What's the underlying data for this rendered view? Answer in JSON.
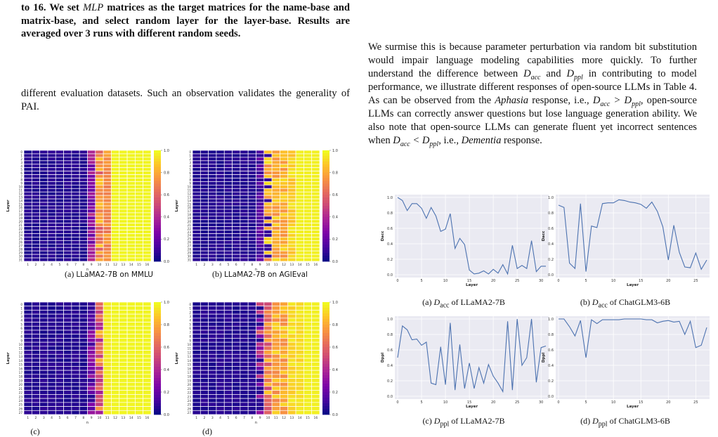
{
  "top_caption": {
    "line1": "to 16. We set",
    "mlp": "MLP",
    "line1b": " matrices as the target matrices for the name-base and matrix-base, and select random layer for the layer-base. Results are averaged over 3 runs with different random seeds."
  },
  "left_text": "different evaluation datasets. Such an observation validates the generality of PAI.",
  "right_text": {
    "p1": "We surmise this is because parameter perturbation via random bit substitution would impair language modeling capabilities more quickly. To further understand the difference between ",
    "dacc": "D",
    "acc": "acc",
    "and": " and ",
    "dppl": "D",
    "ppl": "ppl",
    "p2": " in contributing to model performance, we illustrate different responses of open-source LLMs in Table 4. As can be observed from the ",
    "aphasia": "Aphasia",
    "p3": " response, i.e., ",
    "p4": ", open-source LLMs can correctly answer questions but lose language generation ability. We also note that open-source LLMs can generate fluent yet incorrect sentences when ",
    "p5": ", i.e., ",
    "dementia": "Dementia",
    "p6": " response."
  },
  "heatmaps": [
    {
      "caption_label": "(a)",
      "caption_text": "LLaMA2-7B on MMLU",
      "xlabel": "n",
      "ylabel": "Layer",
      "layers": 32
    },
    {
      "caption_label": "(b)",
      "caption_text": "LLaMA2-7B on AGIEval",
      "xlabel": "n",
      "ylabel": "Layer",
      "layers": 32
    },
    {
      "caption_label": "(c)",
      "caption_text": "",
      "xlabel": "n",
      "ylabel": "Layer",
      "layers": 28
    },
    {
      "caption_label": "(d)",
      "caption_text": "",
      "xlabel": "n",
      "ylabel": "Layer",
      "layers": 28
    }
  ],
  "colorbar_ticks": [
    "1.0",
    "0.8",
    "0.6",
    "0.4",
    "0.2",
    "0.0"
  ],
  "n_ticks": [
    "1",
    "2",
    "3",
    "4",
    "5",
    "6",
    "7",
    "8",
    "9",
    "10",
    "11",
    "12",
    "13",
    "14",
    "15",
    "16"
  ],
  "line_captions": [
    {
      "label": "(a)",
      "metric": "acc",
      "model": "of LLaMA2-7B"
    },
    {
      "label": "(b)",
      "metric": "acc",
      "model": "of ChatGLM3-6B"
    },
    {
      "label": "(c)",
      "metric": "ppl",
      "model": "of LLaMA2-7B"
    },
    {
      "label": "(d)",
      "metric": "ppl",
      "model": "of ChatGLM3-6B"
    }
  ],
  "chart_data": [
    {
      "type": "line",
      "title": "",
      "xlabel": "Layer",
      "ylabel": "Dacc",
      "x": [
        0,
        1,
        2,
        3,
        4,
        5,
        6,
        7,
        8,
        9,
        10,
        11,
        12,
        13,
        14,
        15,
        16,
        17,
        18,
        19,
        20,
        21,
        22,
        23,
        24,
        25,
        26,
        27,
        28,
        29,
        30,
        31
      ],
      "values": [
        1.0,
        0.96,
        0.83,
        0.92,
        0.92,
        0.86,
        0.73,
        0.87,
        0.76,
        0.56,
        0.59,
        0.79,
        0.34,
        0.47,
        0.39,
        0.06,
        0.01,
        0.02,
        0.05,
        0.01,
        0.07,
        0.02,
        0.13,
        0.01,
        0.38,
        0.08,
        0.12,
        0.08,
        0.44,
        0.04,
        0.11,
        0.11
      ],
      "xlim": [
        0,
        31
      ],
      "ylim": [
        0,
        1.0
      ],
      "xticks": [
        "0",
        "5",
        "10",
        "15",
        "20",
        "25",
        "30"
      ],
      "yticks": [
        "0.0",
        "0.2",
        "0.4",
        "0.6",
        "0.8",
        "1.0"
      ]
    },
    {
      "type": "line",
      "title": "",
      "xlabel": "Layer",
      "ylabel": "Dacc",
      "x": [
        0,
        1,
        2,
        3,
        4,
        5,
        6,
        7,
        8,
        9,
        10,
        11,
        12,
        13,
        14,
        15,
        16,
        17,
        18,
        19,
        20,
        21,
        22,
        23,
        24,
        25,
        26,
        27
      ],
      "values": [
        0.9,
        0.87,
        0.15,
        0.08,
        0.92,
        0.04,
        0.63,
        0.61,
        0.92,
        0.93,
        0.93,
        0.97,
        0.96,
        0.94,
        0.93,
        0.91,
        0.86,
        0.94,
        0.82,
        0.62,
        0.19,
        0.64,
        0.29,
        0.1,
        0.09,
        0.28,
        0.07,
        0.19
      ],
      "xlim": [
        0,
        27
      ],
      "ylim": [
        0,
        1.0
      ],
      "xticks": [
        "0",
        "5",
        "10",
        "15",
        "20",
        "25"
      ],
      "yticks": [
        "0.0",
        "0.2",
        "0.4",
        "0.6",
        "0.8",
        "1.0"
      ]
    },
    {
      "type": "line",
      "title": "",
      "xlabel": "Layer",
      "ylabel": "Dppl",
      "x": [
        0,
        1,
        2,
        3,
        4,
        5,
        6,
        7,
        8,
        9,
        10,
        11,
        12,
        13,
        14,
        15,
        16,
        17,
        18,
        19,
        20,
        21,
        22,
        23,
        24,
        25,
        26,
        27,
        28,
        29,
        30,
        31
      ],
      "values": [
        0.5,
        0.91,
        0.86,
        0.73,
        0.74,
        0.66,
        0.7,
        0.17,
        0.15,
        0.64,
        0.15,
        0.95,
        0.08,
        0.67,
        0.1,
        0.43,
        0.1,
        0.37,
        0.17,
        0.41,
        0.26,
        0.17,
        0.06,
        0.97,
        0.08,
        1.0,
        0.4,
        0.5,
        1.0,
        0.18,
        0.63,
        0.65
      ],
      "xlim": [
        0,
        31
      ],
      "ylim": [
        0,
        1.0
      ],
      "xticks": [
        "0",
        "5",
        "10",
        "15",
        "20",
        "25",
        "30"
      ],
      "yticks": [
        "0.0",
        "0.2",
        "0.4",
        "0.6",
        "0.8",
        "1.0"
      ]
    },
    {
      "type": "line",
      "title": "",
      "xlabel": "Layer",
      "ylabel": "Dppl",
      "x": [
        0,
        1,
        2,
        3,
        4,
        5,
        6,
        7,
        8,
        9,
        10,
        11,
        12,
        13,
        14,
        15,
        16,
        17,
        18,
        19,
        20,
        21,
        22,
        23,
        24,
        25,
        26,
        27
      ],
      "values": [
        1.0,
        1.0,
        0.9,
        0.78,
        0.98,
        0.5,
        0.99,
        0.94,
        0.99,
        0.99,
        0.99,
        0.99,
        1.0,
        1.0,
        1.0,
        1.0,
        0.99,
        0.99,
        0.95,
        0.97,
        0.98,
        0.96,
        0.97,
        0.8,
        0.97,
        0.63,
        0.66,
        0.89
      ],
      "xlim": [
        0,
        27
      ],
      "ylim": [
        0,
        1.0
      ],
      "xticks": [
        "0",
        "5",
        "10",
        "15",
        "20",
        "25"
      ],
      "yticks": [
        "0.0",
        "0.2",
        "0.4",
        "0.6",
        "0.8",
        "1.0"
      ]
    }
  ]
}
